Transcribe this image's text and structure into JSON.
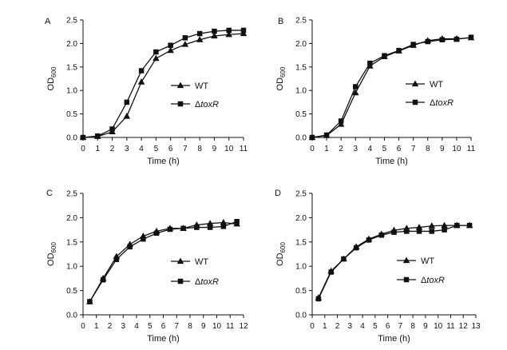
{
  "chart_data": [
    {
      "type": "line",
      "panel": "A",
      "xlabel": "Time (h)",
      "ylabel": "OD",
      "ylabel_sub": "600",
      "xlim": [
        0,
        11
      ],
      "ylim": [
        0,
        2.5
      ],
      "xticks": [
        0,
        1,
        2,
        3,
        4,
        5,
        6,
        7,
        8,
        9,
        10,
        11
      ],
      "yticks": [
        0.0,
        0.5,
        1.0,
        1.5,
        2.0,
        2.5
      ],
      "legend_position": "right",
      "series": [
        {
          "name": "WT",
          "marker": "triangle",
          "x": [
            0,
            1,
            2,
            3,
            4,
            5,
            6,
            7,
            8,
            9,
            10,
            11
          ],
          "y": [
            0.0,
            0.02,
            0.12,
            0.45,
            1.18,
            1.68,
            1.85,
            1.98,
            2.08,
            2.16,
            2.19,
            2.21
          ]
        },
        {
          "name": "ΔtoxR",
          "name_prefix": "Δ",
          "name_italic": "toxR",
          "marker": "square",
          "x": [
            0,
            1,
            2,
            3,
            4,
            5,
            6,
            7,
            8,
            9,
            10,
            11
          ],
          "y": [
            0.0,
            0.03,
            0.18,
            0.75,
            1.42,
            1.82,
            1.96,
            2.12,
            2.21,
            2.26,
            2.28,
            2.28
          ]
        }
      ]
    },
    {
      "type": "line",
      "panel": "B",
      "xlabel": "Time (h)",
      "ylabel": "OD",
      "ylabel_sub": "600",
      "xlim": [
        0,
        11
      ],
      "ylim": [
        0,
        2.5
      ],
      "xticks": [
        0,
        1,
        2,
        3,
        4,
        5,
        6,
        7,
        8,
        9,
        10,
        11
      ],
      "yticks": [
        0.0,
        0.5,
        1.0,
        1.5,
        2.0,
        2.5
      ],
      "legend_position": "right",
      "series": [
        {
          "name": "WT",
          "marker": "triangle",
          "x": [
            0,
            1,
            2,
            3,
            4,
            5,
            6,
            7,
            8,
            9,
            10,
            11
          ],
          "y": [
            0.0,
            0.04,
            0.28,
            0.95,
            1.52,
            1.72,
            1.84,
            1.96,
            2.06,
            2.1,
            2.1,
            2.12
          ]
        },
        {
          "name": "ΔtoxR",
          "name_prefix": "Δ",
          "name_italic": "toxR",
          "marker": "square",
          "x": [
            0,
            1,
            2,
            3,
            4,
            5,
            6,
            7,
            8,
            9,
            10,
            11
          ],
          "y": [
            0.0,
            0.05,
            0.35,
            1.08,
            1.58,
            1.74,
            1.85,
            1.98,
            2.04,
            2.08,
            2.09,
            2.13
          ]
        }
      ]
    },
    {
      "type": "line",
      "panel": "C",
      "xlabel": "Time (h)",
      "ylabel": "OD",
      "ylabel_sub": "600",
      "xlim": [
        0,
        12
      ],
      "ylim": [
        0,
        2.5
      ],
      "xticks": [
        0,
        1,
        2,
        3,
        4,
        5,
        6,
        7,
        8,
        9,
        10,
        11,
        12
      ],
      "yticks": [
        0.0,
        0.5,
        1.0,
        1.5,
        2.0,
        2.5
      ],
      "legend_position": "right",
      "series": [
        {
          "name": "WT",
          "marker": "triangle",
          "x": [
            0.5,
            1.5,
            2.5,
            3.5,
            4.5,
            5.5,
            6.5,
            7.5,
            8.5,
            9.5,
            10.5,
            11.5
          ],
          "y": [
            0.27,
            0.75,
            1.2,
            1.45,
            1.62,
            1.72,
            1.78,
            1.78,
            1.85,
            1.88,
            1.9,
            1.87
          ]
        },
        {
          "name": "ΔtoxR",
          "name_prefix": "Δ",
          "name_italic": "toxR",
          "marker": "square",
          "x": [
            0.5,
            1.5,
            2.5,
            3.5,
            4.5,
            5.5,
            6.5,
            7.5,
            8.5,
            9.5,
            10.5,
            11.5
          ],
          "y": [
            0.27,
            0.72,
            1.14,
            1.4,
            1.56,
            1.68,
            1.76,
            1.78,
            1.8,
            1.8,
            1.82,
            1.92
          ]
        }
      ]
    },
    {
      "type": "line",
      "panel": "D",
      "xlabel": "Time (h)",
      "ylabel": "OD",
      "ylabel_sub": "600",
      "xlim": [
        0,
        13
      ],
      "ylim": [
        0,
        2.5
      ],
      "xticks": [
        0,
        1,
        2,
        3,
        4,
        5,
        6,
        7,
        8,
        9,
        10,
        11,
        12,
        13
      ],
      "yticks": [
        0.0,
        0.5,
        1.0,
        1.5,
        2.0,
        2.5
      ],
      "legend_position": "right",
      "series": [
        {
          "name": "WT",
          "marker": "triangle",
          "x": [
            0.5,
            1.5,
            2.5,
            3.5,
            4.5,
            5.5,
            6.5,
            7.5,
            8.5,
            9.5,
            10.5,
            11.5,
            12.5
          ],
          "y": [
            0.35,
            0.9,
            1.15,
            1.4,
            1.56,
            1.66,
            1.74,
            1.78,
            1.8,
            1.83,
            1.84,
            1.84,
            1.84
          ]
        },
        {
          "name": "ΔtoxR",
          "name_prefix": "Δ",
          "name_italic": "toxR",
          "marker": "square",
          "x": [
            0.5,
            1.5,
            2.5,
            3.5,
            4.5,
            5.5,
            6.5,
            7.5,
            8.5,
            9.5,
            10.5,
            11.5,
            12.5
          ],
          "y": [
            0.33,
            0.88,
            1.15,
            1.38,
            1.54,
            1.64,
            1.7,
            1.72,
            1.72,
            1.72,
            1.75,
            1.84,
            1.84
          ]
        }
      ]
    }
  ]
}
